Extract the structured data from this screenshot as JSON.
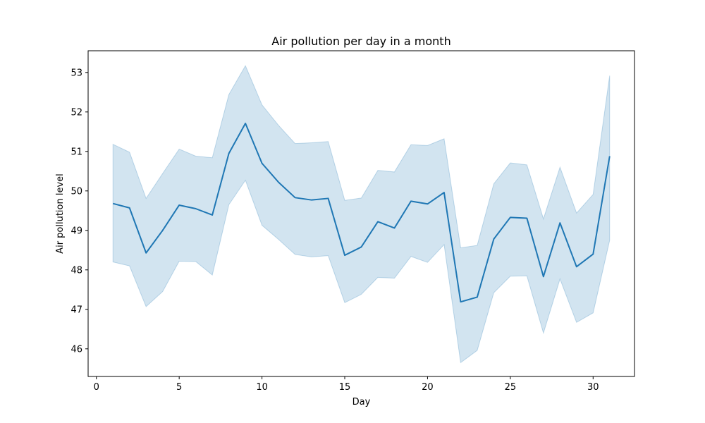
{
  "chart_data": {
    "type": "line",
    "title": "Air pollution per day in a month",
    "xlabel": "Day",
    "ylabel": "Air pollution level",
    "xlim": [
      -0.5,
      32.5
    ],
    "ylim": [
      45.3,
      53.55
    ],
    "x_ticks": [
      0,
      5,
      10,
      15,
      20,
      25,
      30
    ],
    "y_ticks": [
      46,
      47,
      48,
      49,
      50,
      51,
      52,
      53
    ],
    "grid": false,
    "colors": {
      "line": "#1f77b4",
      "band": "#1f77b4"
    },
    "series": [
      {
        "x": [
          1,
          2,
          3,
          4,
          5,
          6,
          7,
          8,
          9,
          10,
          11,
          12,
          13,
          14,
          15,
          16,
          17,
          18,
          19,
          20,
          21,
          22,
          23,
          24,
          25,
          26,
          27,
          28,
          29,
          30,
          31
        ],
        "values": [
          49.68,
          49.57,
          48.43,
          49.0,
          49.64,
          49.55,
          49.39,
          50.95,
          51.71,
          50.7,
          50.22,
          49.83,
          49.77,
          49.81,
          48.37,
          48.58,
          49.22,
          49.06,
          49.74,
          49.67,
          49.96,
          47.19,
          47.31,
          48.78,
          49.33,
          49.31,
          47.83,
          49.19,
          48.08,
          48.4,
          50.88
        ],
        "lower": [
          48.2,
          48.1,
          47.07,
          47.45,
          48.22,
          48.21,
          47.87,
          49.65,
          50.27,
          49.13,
          48.77,
          48.39,
          48.33,
          48.36,
          47.17,
          47.38,
          47.81,
          47.79,
          48.34,
          48.19,
          48.64,
          45.65,
          45.96,
          47.42,
          47.84,
          47.85,
          46.4,
          47.77,
          46.67,
          46.91,
          48.75
        ],
        "upper": [
          51.18,
          50.98,
          49.81,
          50.44,
          51.06,
          50.88,
          50.84,
          52.44,
          53.17,
          52.18,
          51.66,
          51.2,
          51.22,
          51.25,
          49.76,
          49.82,
          50.52,
          50.48,
          51.17,
          51.15,
          51.32,
          48.56,
          48.62,
          50.18,
          50.71,
          50.66,
          49.29,
          50.6,
          49.44,
          49.91,
          52.92
        ]
      }
    ]
  }
}
